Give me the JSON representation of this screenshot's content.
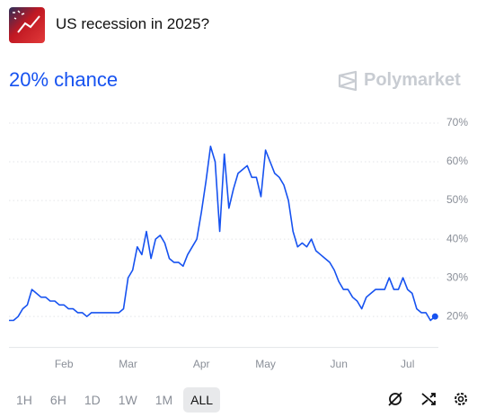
{
  "header": {
    "title": "US recession in 2025?"
  },
  "chart_data": {
    "type": "line",
    "headline": "20% chance",
    "brand": "Polymarket",
    "color": "#1652f0",
    "categories": [
      null,
      null,
      null,
      null,
      null,
      null,
      null,
      null,
      null,
      null,
      null,
      null,
      "Feb",
      null,
      null,
      null,
      null,
      null,
      null,
      null,
      null,
      null,
      null,
      null,
      null,
      null,
      "Mar",
      null,
      null,
      null,
      null,
      null,
      null,
      null,
      null,
      null,
      null,
      null,
      null,
      null,
      null,
      null,
      "Apr",
      null,
      null,
      null,
      null,
      null,
      null,
      null,
      null,
      null,
      null,
      null,
      null,
      null,
      "May",
      null,
      null,
      null,
      null,
      null,
      null,
      null,
      null,
      null,
      null,
      null,
      null,
      null,
      null,
      null,
      "Jun",
      null,
      null,
      null,
      null,
      null,
      null,
      null,
      null,
      null,
      null,
      null,
      null,
      null,
      null,
      "Jul",
      null,
      null,
      null,
      null,
      null,
      null
    ],
    "values": [
      19,
      19,
      20,
      22,
      23,
      27,
      26,
      25,
      25,
      24,
      24,
      23,
      23,
      22,
      22,
      21,
      21,
      20,
      21,
      21,
      21,
      21,
      21,
      21,
      21,
      22,
      30,
      32,
      38,
      36,
      42,
      35,
      40,
      41,
      39,
      35,
      34,
      34,
      33,
      36,
      38,
      40,
      47,
      55,
      64,
      60,
      42,
      62,
      48,
      53,
      57,
      58,
      59,
      56,
      56,
      51,
      63,
      60,
      57,
      56,
      54,
      50,
      42,
      38,
      39,
      38,
      40,
      37,
      36,
      35,
      34,
      32,
      29,
      27,
      27,
      25,
      24,
      22,
      25,
      26,
      27,
      27,
      27,
      30,
      27,
      27,
      30,
      27,
      26,
      22,
      21,
      21,
      19,
      20
    ],
    "ylim": [
      12,
      72
    ],
    "yticks": [
      {
        "value": 20,
        "label": "20%"
      },
      {
        "value": 30,
        "label": "30%"
      },
      {
        "value": 40,
        "label": "40%"
      },
      {
        "value": 50,
        "label": "50%"
      },
      {
        "value": 60,
        "label": "60%"
      },
      {
        "value": 70,
        "label": "70%"
      }
    ],
    "grid": true
  },
  "range_selector": {
    "options": [
      "1H",
      "6H",
      "1D",
      "1W",
      "1M",
      "ALL"
    ],
    "selected_index": 5
  }
}
